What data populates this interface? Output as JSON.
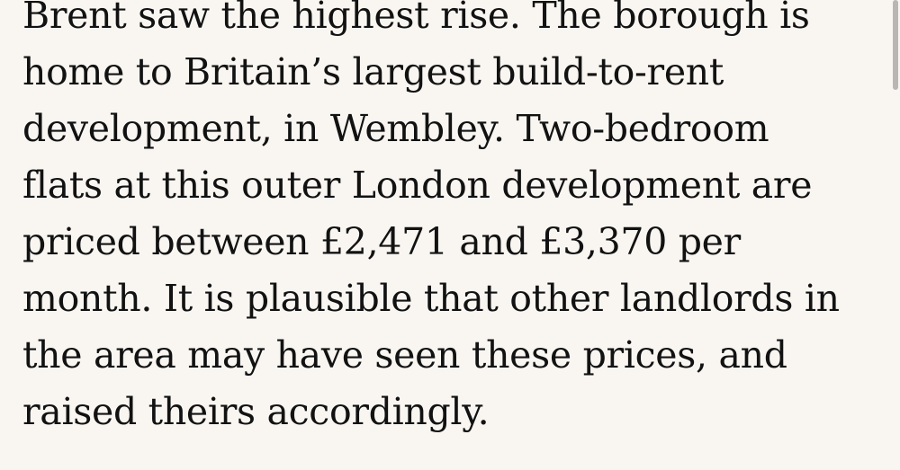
{
  "paragraph": {
    "lines": [
      "Brent saw the highest rise. The borough is",
      "home to Britain’s largest build-to-rent",
      "development, in Wembley. Two-bedroom",
      "flats at this outer London development are",
      "priced between £2,471 and £3,370 per",
      "month. It is plausible that other landlords in",
      "the area may have seen these prices, and",
      "raised theirs accordingly."
    ]
  }
}
